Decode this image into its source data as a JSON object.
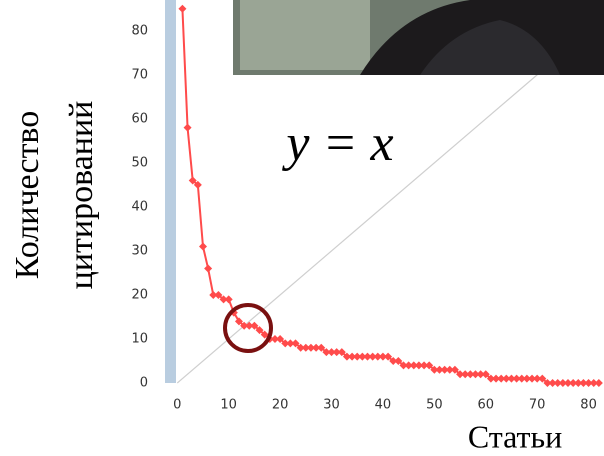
{
  "chart_data": {
    "type": "line",
    "x": [
      1,
      2,
      3,
      4,
      5,
      6,
      7,
      8,
      9,
      10,
      11,
      12,
      13,
      14,
      15,
      16,
      17,
      18,
      19,
      20,
      21,
      22,
      23,
      24,
      25,
      26,
      27,
      28,
      29,
      30,
      31,
      32,
      33,
      34,
      35,
      36,
      37,
      38,
      39,
      40,
      41,
      42,
      43,
      44,
      45,
      46,
      47,
      48,
      49,
      50,
      51,
      52,
      53,
      54,
      55,
      56,
      57,
      58,
      59,
      60,
      61,
      62,
      63,
      64,
      65,
      66,
      67,
      68,
      69,
      70,
      71,
      72,
      73,
      74,
      75,
      76,
      77,
      78,
      79,
      80,
      81,
      82
    ],
    "values": [
      85,
      58,
      46,
      45,
      31,
      26,
      20,
      20,
      19,
      19,
      16,
      14,
      13,
      13,
      13,
      12,
      11,
      10,
      10,
      10,
      9,
      9,
      9,
      8,
      8,
      8,
      8,
      8,
      7,
      7,
      7,
      7,
      6,
      6,
      6,
      6,
      6,
      6,
      6,
      6,
      6,
      5,
      5,
      4,
      4,
      4,
      4,
      4,
      4,
      3,
      3,
      3,
      3,
      3,
      2,
      2,
      2,
      2,
      2,
      2,
      1,
      1,
      1,
      1,
      1,
      1,
      1,
      1,
      1,
      1,
      1,
      0,
      0,
      0,
      0,
      0,
      0,
      0,
      0,
      0,
      0,
      0
    ],
    "color": "#ff4b4b",
    "xlim": [
      -2,
      83
    ],
    "ylim": [
      0,
      87
    ],
    "xticks": [
      0,
      10,
      20,
      30,
      40,
      50,
      60,
      70,
      80
    ],
    "yticks": [
      0,
      10,
      20,
      30,
      40,
      50,
      60,
      70,
      80
    ],
    "y_label_lines": [
      "Количество",
      "цитирований"
    ],
    "x_label": "Статьи",
    "annotation": "y = x"
  }
}
